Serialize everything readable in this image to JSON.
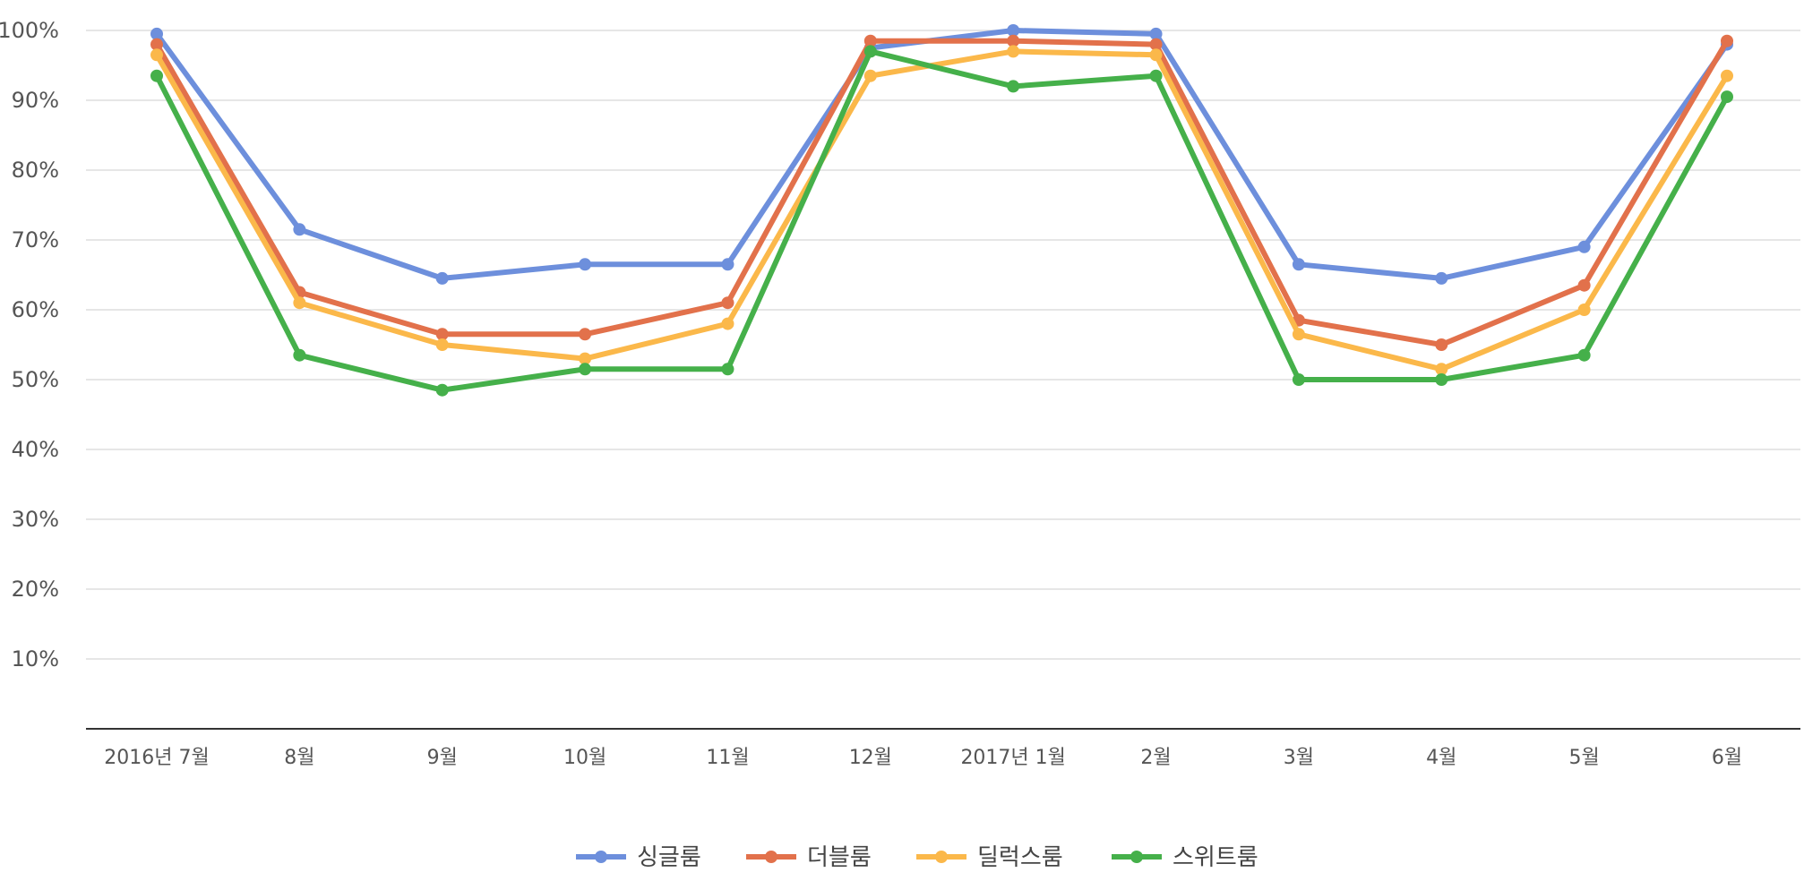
{
  "chart_data": {
    "type": "line",
    "title": "",
    "xlabel": "",
    "ylabel": "",
    "categories": [
      "2016년 7월",
      "8월",
      "9월",
      "10월",
      "11월",
      "12월",
      "2017년 1월",
      "2월",
      "3월",
      "4월",
      "5월",
      "6월"
    ],
    "y_ticks": [
      "10%",
      "20%",
      "30%",
      "40%",
      "50%",
      "60%",
      "70%",
      "80%",
      "90%",
      "100%"
    ],
    "ylim": [
      0,
      100
    ],
    "grid": true,
    "legend_position": "bottom",
    "series": [
      {
        "name": "싱글룸",
        "color": "#6d8fdc",
        "values": [
          99.5,
          71.5,
          64.5,
          66.5,
          66.5,
          97.5,
          100,
          99.5,
          66.5,
          64.5,
          69,
          98
        ]
      },
      {
        "name": "더블룸",
        "color": "#e2714b",
        "values": [
          98,
          62.5,
          56.5,
          56.5,
          61,
          98.5,
          98.5,
          98,
          58.5,
          55,
          63.5,
          98.5
        ]
      },
      {
        "name": "딜럭스룸",
        "color": "#fbb84a",
        "values": [
          96.5,
          61,
          55,
          53,
          58,
          93.5,
          97,
          96.5,
          56.5,
          51.5,
          60,
          93.5
        ]
      },
      {
        "name": "스위트룸",
        "color": "#45b04a",
        "values": [
          93.5,
          53.5,
          48.5,
          51.5,
          51.5,
          97,
          92,
          93.5,
          50,
          50,
          53.5,
          90.5
        ]
      }
    ]
  }
}
